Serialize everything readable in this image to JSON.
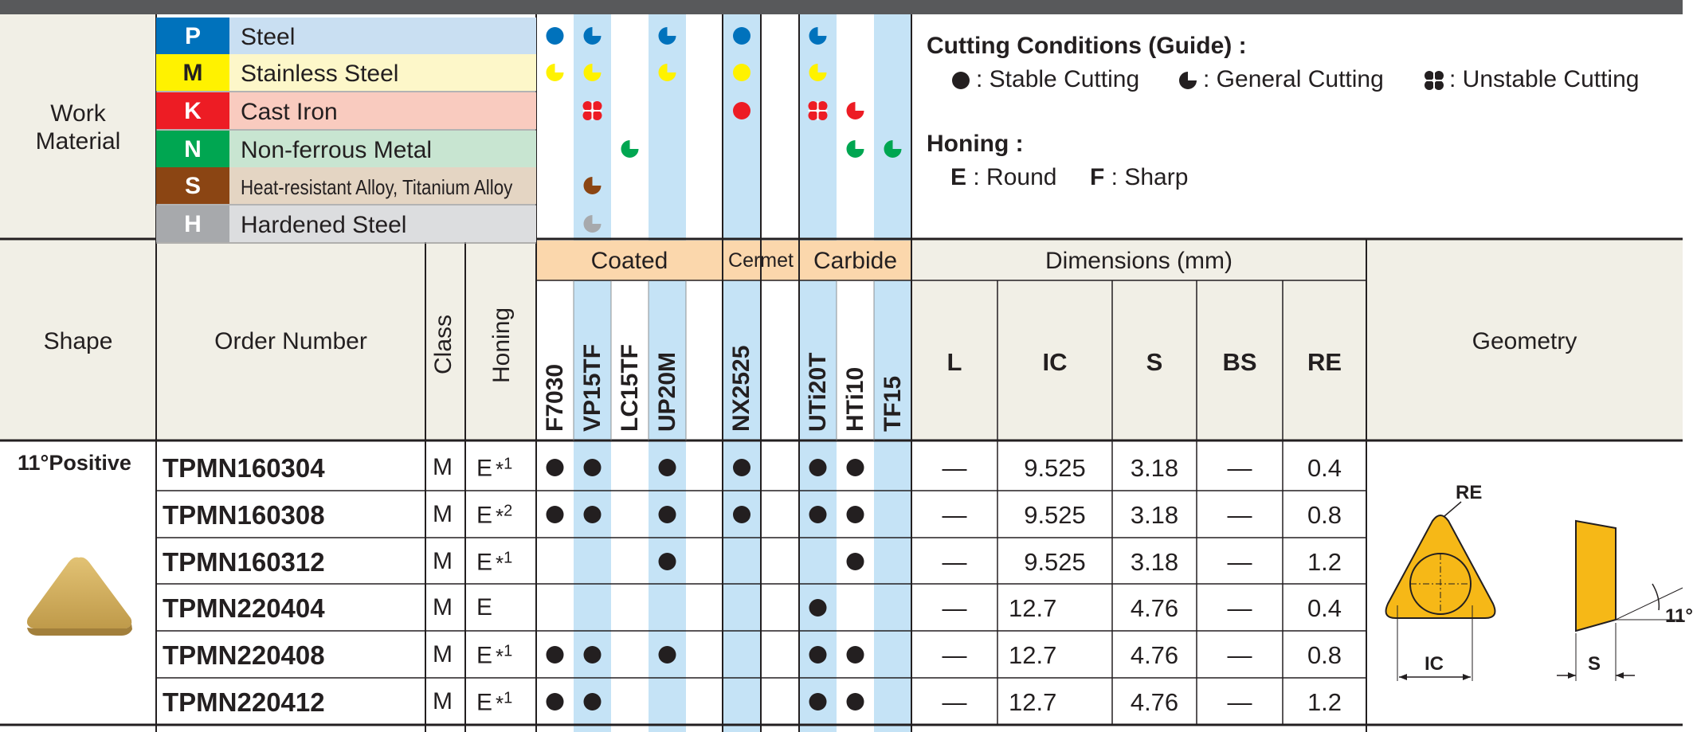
{
  "colors": {
    "bar": "#58595b",
    "beige": "#f1efe6",
    "blue_col": "#c5e3f6",
    "coated_hdr": "#fbd7ac",
    "P": "#0072bc",
    "M": "#fff200",
    "K": "#ed1c24",
    "N": "#00a651",
    "S": "#8b4513",
    "H": "#a7a9ac"
  },
  "work_material": {
    "label_line1": "Work",
    "label_line2": "Material",
    "rows": [
      {
        "letter": "P",
        "name": "Steel",
        "bg": "#c9dff2",
        "tile": "#0072bc"
      },
      {
        "letter": "M",
        "name": "Stainless Steel",
        "bg": "#fdf7c9",
        "tile": "#fff200",
        "letter_color": "#231f20"
      },
      {
        "letter": "K",
        "name": "Cast Iron",
        "bg": "#f9cbbf",
        "tile": "#ed1c24"
      },
      {
        "letter": "N",
        "name": "Non-ferrous Metal",
        "bg": "#c8e5d1",
        "tile": "#00a651"
      },
      {
        "letter": "S",
        "name": "Heat-resistant Alloy, Titanium Alloy",
        "bg": "#e4d5c3",
        "tile": "#8b4513"
      },
      {
        "letter": "H",
        "name": "Hardened Steel",
        "bg": "#dcdddf",
        "tile": "#a7a9ac"
      }
    ]
  },
  "conditions": {
    "title": "Cutting Conditions (Guide) :",
    "stable": ": Stable Cutting",
    "general": ": General Cutting",
    "unstable": ": Unstable Cutting",
    "honing_title": "Honing :",
    "e_label": "E",
    "e_text": ": Round",
    "f_label": "F",
    "f_text": ": Sharp"
  },
  "suitability": [
    [
      "stable",
      "general",
      null,
      "general",
      "stable",
      "general",
      null,
      null
    ],
    [
      "general",
      "general",
      null,
      "general",
      "stable",
      "general",
      null,
      null
    ],
    [
      null,
      "unstable",
      null,
      null,
      "stable",
      "unstable",
      "general",
      null
    ],
    [
      null,
      null,
      "general",
      null,
      null,
      null,
      "general",
      "general"
    ],
    [
      null,
      "general",
      null,
      null,
      null,
      null,
      null,
      null
    ],
    [
      null,
      "general",
      null,
      null,
      null,
      null,
      null,
      null
    ]
  ],
  "headers": {
    "shape": "Shape",
    "order_number": "Order Number",
    "class": "Class",
    "honing": "Honing",
    "coated": "Coated",
    "cermet": "Cermet",
    "carbide": "Carbide",
    "dimensions": "Dimensions (mm)",
    "geometry": "Geometry",
    "dim_cols": [
      "L",
      "IC",
      "S",
      "BS",
      "RE"
    ]
  },
  "grades": [
    "F7030",
    "VP15TF",
    "LC15TF",
    "UP20M",
    "NX2525",
    "UTi20T",
    "HTi10",
    "TF15"
  ],
  "shape_label": "11°Positive",
  "rows": [
    {
      "order": "TPMN160304",
      "class": "M",
      "honing": "E",
      "note": "*1",
      "stock": [
        1,
        1,
        0,
        1,
        1,
        1,
        1,
        0
      ],
      "L": "—",
      "IC": "9.525",
      "S": "3.18",
      "BS": "—",
      "RE": "0.4"
    },
    {
      "order": "TPMN160308",
      "class": "M",
      "honing": "E",
      "note": "*2",
      "stock": [
        1,
        1,
        0,
        1,
        1,
        1,
        1,
        0
      ],
      "L": "—",
      "IC": "9.525",
      "S": "3.18",
      "BS": "—",
      "RE": "0.8"
    },
    {
      "order": "TPMN160312",
      "class": "M",
      "honing": "E",
      "note": "*1",
      "stock": [
        0,
        0,
        0,
        1,
        0,
        0,
        1,
        0
      ],
      "L": "—",
      "IC": "9.525",
      "S": "3.18",
      "BS": "—",
      "RE": "1.2"
    },
    {
      "order": "TPMN220404",
      "class": "M",
      "honing": "E",
      "note": "",
      "stock": [
        0,
        0,
        0,
        0,
        0,
        1,
        0,
        0
      ],
      "L": "—",
      "IC": "12.7",
      "S": "4.76",
      "BS": "—",
      "RE": "0.4"
    },
    {
      "order": "TPMN220408",
      "class": "M",
      "honing": "E",
      "note": "*1",
      "stock": [
        1,
        1,
        0,
        1,
        0,
        1,
        1,
        0
      ],
      "L": "—",
      "IC": "12.7",
      "S": "4.76",
      "BS": "—",
      "RE": "0.8"
    },
    {
      "order": "TPMN220412",
      "class": "M",
      "honing": "E",
      "note": "*1",
      "stock": [
        1,
        1,
        0,
        0,
        0,
        1,
        1,
        0
      ],
      "L": "—",
      "IC": "12.7",
      "S": "4.76",
      "BS": "—",
      "RE": "1.2"
    }
  ],
  "geometry": {
    "re_label": "RE",
    "ic_label": "IC",
    "s_label": "S",
    "angle_label": "11°"
  }
}
